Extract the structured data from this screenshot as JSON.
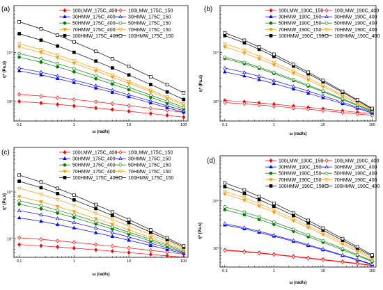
{
  "chart_data": [
    {
      "panel_label": "(a)",
      "type": "scatter",
      "xscale": "log",
      "yscale": "log",
      "xlim": [
        0.08,
        120
      ],
      "ylim": [
        400,
        90000
      ],
      "xticks": [
        0.1,
        1,
        10,
        100
      ],
      "xtick_labels": [
        "0.1",
        "1",
        "10",
        "100"
      ],
      "yticks": [
        1000,
        10000
      ],
      "ytick_labels": [
        "10³",
        "10⁴"
      ],
      "xlabel": "ω (rad/s)",
      "ylabel": "η* (Pa.s)",
      "legend": "top",
      "series": [
        {
          "name": "100LMW_175C_400",
          "color": "#ff0000",
          "marker": "diamond",
          "filled": true,
          "y_at_0.1": 1000,
          "y_at_100": 480
        },
        {
          "name": "100LMW_175C_150",
          "color": "#ff0000",
          "marker": "diamond",
          "filled": false,
          "y_at_0.1": 1400,
          "y_at_100": 600
        },
        {
          "name": "30HMW_175C_400",
          "color": "#0000ff",
          "marker": "triangle",
          "filled": true,
          "y_at_0.1": 4200,
          "y_at_100": 600
        },
        {
          "name": "30HMW_175C_150",
          "color": "#0000ff",
          "marker": "triangle",
          "filled": false,
          "y_at_0.1": 4800,
          "y_at_100": 650
        },
        {
          "name": "50HMW_175C_400",
          "color": "#008000",
          "marker": "circle",
          "filled": true,
          "y_at_0.1": 8000,
          "y_at_100": 700
        },
        {
          "name": "50HMW_175C_150",
          "color": "#008000",
          "marker": "circle",
          "filled": false,
          "y_at_0.1": 9500,
          "y_at_100": 760
        },
        {
          "name": "70HMW_175C_400",
          "color": "#ff9900",
          "marker": "triangle-down",
          "filled": true,
          "y_at_0.1": 13000,
          "y_at_100": 850
        },
        {
          "name": "70HMW_175C_150",
          "color": "#ff9900",
          "marker": "triangle-down",
          "filled": false,
          "y_at_0.1": 15000,
          "y_at_100": 900
        },
        {
          "name": "100HMW_175C_400",
          "color": "#000000",
          "marker": "square",
          "filled": true,
          "y_at_0.1": 24000,
          "y_at_100": 1100
        },
        {
          "name": "100HMW_175C_150",
          "color": "#000000",
          "marker": "square",
          "filled": false,
          "y_at_0.1": 42000,
          "y_at_100": 1500
        }
      ]
    },
    {
      "panel_label": "(b)",
      "type": "scatter",
      "xscale": "log",
      "yscale": "log",
      "xlim": [
        0.08,
        120
      ],
      "ylim": [
        400,
        90000
      ],
      "xticks": [
        0.1,
        1,
        10,
        100
      ],
      "xtick_labels": [
        "0.1",
        "1",
        "10",
        "100"
      ],
      "yticks": [
        1000,
        10000
      ],
      "ytick_labels": [
        "10³",
        "10⁴"
      ],
      "xlabel": "ω (rad/s)",
      "ylabel": "η* (Pa.s)",
      "legend": "top",
      "series": [
        {
          "name": "100LMW_190C_150",
          "color": "#ff0000",
          "marker": "diamond",
          "filled": true,
          "y_at_0.1": 1050,
          "y_at_100": 560
        },
        {
          "name": "100LMW_190C_400",
          "color": "#ff0000",
          "marker": "diamond",
          "filled": false,
          "y_at_0.1": 950,
          "y_at_100": 520
        },
        {
          "name": "30HMW_190C_150",
          "color": "#0000ff",
          "marker": "triangle",
          "filled": true,
          "y_at_0.1": 4000,
          "y_at_100": 580
        },
        {
          "name": "30HMW_190C_400",
          "color": "#0000ff",
          "marker": "triangle",
          "filled": false,
          "y_at_0.1": 4800,
          "y_at_100": 600
        },
        {
          "name": "50HMW_190C_150",
          "color": "#008000",
          "marker": "circle",
          "filled": true,
          "y_at_0.1": 7500,
          "y_at_100": 620
        },
        {
          "name": "50HMW_190C_400",
          "color": "#008000",
          "marker": "circle",
          "filled": false,
          "y_at_0.1": 8000,
          "y_at_100": 640
        },
        {
          "name": "70HMW_190C_150",
          "color": "#ff9900",
          "marker": "triangle-down",
          "filled": true,
          "y_at_0.1": 13000,
          "y_at_100": 650
        },
        {
          "name": "70HMW_190C_400",
          "color": "#ff9900",
          "marker": "triangle-down",
          "filled": false,
          "y_at_0.1": 15000,
          "y_at_100": 680
        },
        {
          "name": "100HMW_190C_150",
          "color": "#000000",
          "marker": "square",
          "filled": true,
          "y_at_0.1": 22000,
          "y_at_100": 700
        },
        {
          "name": "100HMW_190C_400",
          "color": "#000000",
          "marker": "square",
          "filled": false,
          "y_at_0.1": 25000,
          "y_at_100": 720
        }
      ]
    },
    {
      "panel_label": "(c)",
      "type": "scatter",
      "xscale": "log",
      "yscale": "log",
      "xlim": [
        0.08,
        120
      ],
      "ylim": [
        400,
        90000
      ],
      "xticks": [
        0.1,
        1,
        10,
        100
      ],
      "xtick_labels": [
        "0.1",
        "1",
        "10",
        "100"
      ],
      "yticks": [
        1000,
        10000
      ],
      "ytick_labels": [
        "10³",
        "10⁴"
      ],
      "xlabel": "ω (rad/s)",
      "ylabel": "η* (Pa.s)",
      "legend": "top",
      "series": [
        {
          "name": "100LMW_175C_400",
          "color": "#ff0000",
          "marker": "diamond",
          "filled": true,
          "y_at_0.1": 750,
          "y_at_100": 400
        },
        {
          "name": "100LMW_175C_150",
          "color": "#ff0000",
          "marker": "diamond",
          "filled": false,
          "y_at_0.1": 1050,
          "y_at_100": 470
        },
        {
          "name": "30HMW_175C_400",
          "color": "#0000ff",
          "marker": "triangle",
          "filled": true,
          "y_at_0.1": 2800,
          "y_at_100": 480
        },
        {
          "name": "30HMW_175C_150",
          "color": "#0000ff",
          "marker": "triangle",
          "filled": false,
          "y_at_0.1": 4000,
          "y_at_100": 500
        },
        {
          "name": "50HMW_175C_400",
          "color": "#008000",
          "marker": "circle",
          "filled": true,
          "y_at_0.1": 5500,
          "y_at_100": 520
        },
        {
          "name": "50HMW_175C_150",
          "color": "#008000",
          "marker": "circle",
          "filled": false,
          "y_at_0.1": 6500,
          "y_at_100": 550
        },
        {
          "name": "70HMW_175C_400",
          "color": "#ff9900",
          "marker": "triangle-down",
          "filled": true,
          "y_at_0.1": 8000,
          "y_at_100": 580
        },
        {
          "name": "70HMW_175C_150",
          "color": "#ff9900",
          "marker": "triangle-down",
          "filled": false,
          "y_at_0.1": 12000,
          "y_at_100": 620
        },
        {
          "name": "100HMW_175C_400",
          "color": "#000000",
          "marker": "square",
          "filled": true,
          "y_at_0.1": 17000,
          "y_at_100": 660
        },
        {
          "name": "100HMW_175C_150",
          "color": "#000000",
          "marker": "square",
          "filled": false,
          "y_at_0.1": 23000,
          "y_at_100": 700
        }
      ]
    },
    {
      "panel_label": "(d)",
      "type": "scatter",
      "xscale": "log",
      "yscale": "log",
      "xlim": [
        0.08,
        120
      ],
      "ylim": [
        400,
        90000
      ],
      "xticks": [
        0.1,
        1,
        10,
        100
      ],
      "xtick_labels": [
        "0.1",
        "1",
        "10",
        "100"
      ],
      "yticks": [
        1000,
        10000
      ],
      "ytick_labels": [
        "10³",
        "10⁴"
      ],
      "xlabel": "ω (rad/s)",
      "ylabel": "η* (Pa.s)",
      "legend": "top",
      "series": [
        {
          "name": "100LMW_190C_150",
          "color": "#ff0000",
          "marker": "diamond",
          "filled": true,
          "y_at_0.1": 920,
          "y_at_100": 440
        },
        {
          "name": "100LMW_190C_400",
          "color": "#ff0000",
          "marker": "diamond",
          "filled": false,
          "y_at_0.1": 900,
          "y_at_100": 430
        },
        {
          "name": "30HMW_190C_150",
          "color": "#0000ff",
          "marker": "triangle",
          "filled": true,
          "y_at_0.1": 3100,
          "y_at_100": 450
        },
        {
          "name": "30HMW_190C_400",
          "color": "#0000ff",
          "marker": "triangle",
          "filled": false,
          "y_at_0.1": 3300,
          "y_at_100": 460
        },
        {
          "name": "50HMW_190C_150",
          "color": "#008000",
          "marker": "circle",
          "filled": true,
          "y_at_0.1": 6500,
          "y_at_100": 520
        },
        {
          "name": "50HMW_190C_400",
          "color": "#008000",
          "marker": "circle",
          "filled": false,
          "y_at_0.1": 7500,
          "y_at_100": 540
        },
        {
          "name": "70HMW_190C_150",
          "color": "#ff9900",
          "marker": "triangle-down",
          "filled": true,
          "y_at_0.1": 14000,
          "y_at_100": 600
        },
        {
          "name": "70HMW_190C_400",
          "color": "#ff9900",
          "marker": "triangle-down",
          "filled": false,
          "y_at_0.1": 16000,
          "y_at_100": 640
        },
        {
          "name": "100HMW_190C_150",
          "color": "#000000",
          "marker": "square",
          "filled": true,
          "y_at_0.1": 20000,
          "y_at_100": 680
        },
        {
          "name": "100HMW_190C_400",
          "color": "#000000",
          "marker": "square",
          "filled": false,
          "y_at_0.1": 24000,
          "y_at_100": 720
        }
      ]
    }
  ]
}
